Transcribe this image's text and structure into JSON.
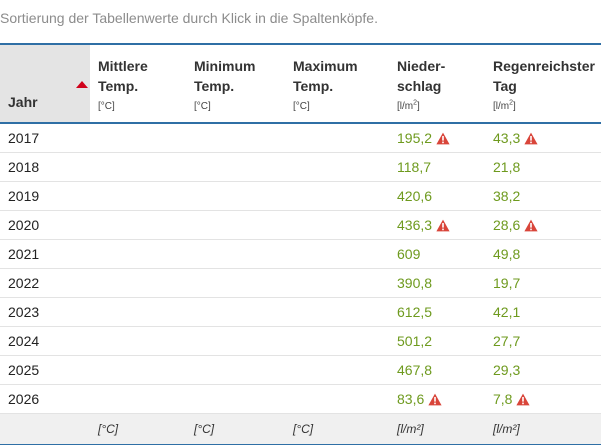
{
  "hint": "Sortierung der Tabellenwerte durch Klick in die Spaltenköpfe.",
  "columns": [
    {
      "line1": "",
      "line2": "Jahr",
      "unit": ""
    },
    {
      "line1": "Mittlere",
      "line2": "Temp.",
      "unit": "[°C]"
    },
    {
      "line1": "Minimum",
      "line2": "Temp.",
      "unit": "[°C]"
    },
    {
      "line1": "Maximum",
      "line2": "Temp.",
      "unit": "[°C]"
    },
    {
      "line1": "Nieder-",
      "line2": "schlag",
      "unit": "[l/m",
      "unit_sup": "2",
      "unit_end": "]"
    },
    {
      "line1": "Regenreichster",
      "line2": "Tag",
      "unit": "[l/m",
      "unit_sup": "2",
      "unit_end": "]"
    }
  ],
  "sort_indicator": "ascending",
  "rows": [
    {
      "year": "2017",
      "mean": "",
      "min": "",
      "max": "",
      "precip": "195,2",
      "precip_warn": true,
      "wettest": "43,3",
      "wettest_warn": true
    },
    {
      "year": "2018",
      "mean": "",
      "min": "",
      "max": "",
      "precip": "118,7",
      "precip_warn": false,
      "wettest": "21,8",
      "wettest_warn": false
    },
    {
      "year": "2019",
      "mean": "",
      "min": "",
      "max": "",
      "precip": "420,6",
      "precip_warn": false,
      "wettest": "38,2",
      "wettest_warn": false
    },
    {
      "year": "2020",
      "mean": "",
      "min": "",
      "max": "",
      "precip": "436,3",
      "precip_warn": true,
      "wettest": "28,6",
      "wettest_warn": true
    },
    {
      "year": "2021",
      "mean": "",
      "min": "",
      "max": "",
      "precip": "609",
      "precip_warn": false,
      "wettest": "49,8",
      "wettest_warn": false
    },
    {
      "year": "2022",
      "mean": "",
      "min": "",
      "max": "",
      "precip": "390,8",
      "precip_warn": false,
      "wettest": "19,7",
      "wettest_warn": false
    },
    {
      "year": "2023",
      "mean": "",
      "min": "",
      "max": "",
      "precip": "612,5",
      "precip_warn": false,
      "wettest": "42,1",
      "wettest_warn": false
    },
    {
      "year": "2024",
      "mean": "",
      "min": "",
      "max": "",
      "precip": "501,2",
      "precip_warn": false,
      "wettest": "27,7",
      "wettest_warn": false
    },
    {
      "year": "2025",
      "mean": "",
      "min": "",
      "max": "",
      "precip": "467,8",
      "precip_warn": false,
      "wettest": "29,3",
      "wettest_warn": false
    },
    {
      "year": "2026",
      "mean": "",
      "min": "",
      "max": "",
      "precip": "83,6",
      "precip_warn": true,
      "wettest": "7,8",
      "wettest_warn": true
    }
  ],
  "footer": [
    "",
    "[°C]",
    "[°C]",
    "[°C]",
    "[l/m²]",
    "[l/m²]"
  ],
  "colors": {
    "accent_border": "#2f6fa5",
    "value_green": "#6e9a1e",
    "warning_red": "#d9453a",
    "sort_arrow": "#d0021b"
  },
  "icons": {
    "warning": "warning-triangle-icon",
    "sort": "sort-ascending-icon"
  }
}
